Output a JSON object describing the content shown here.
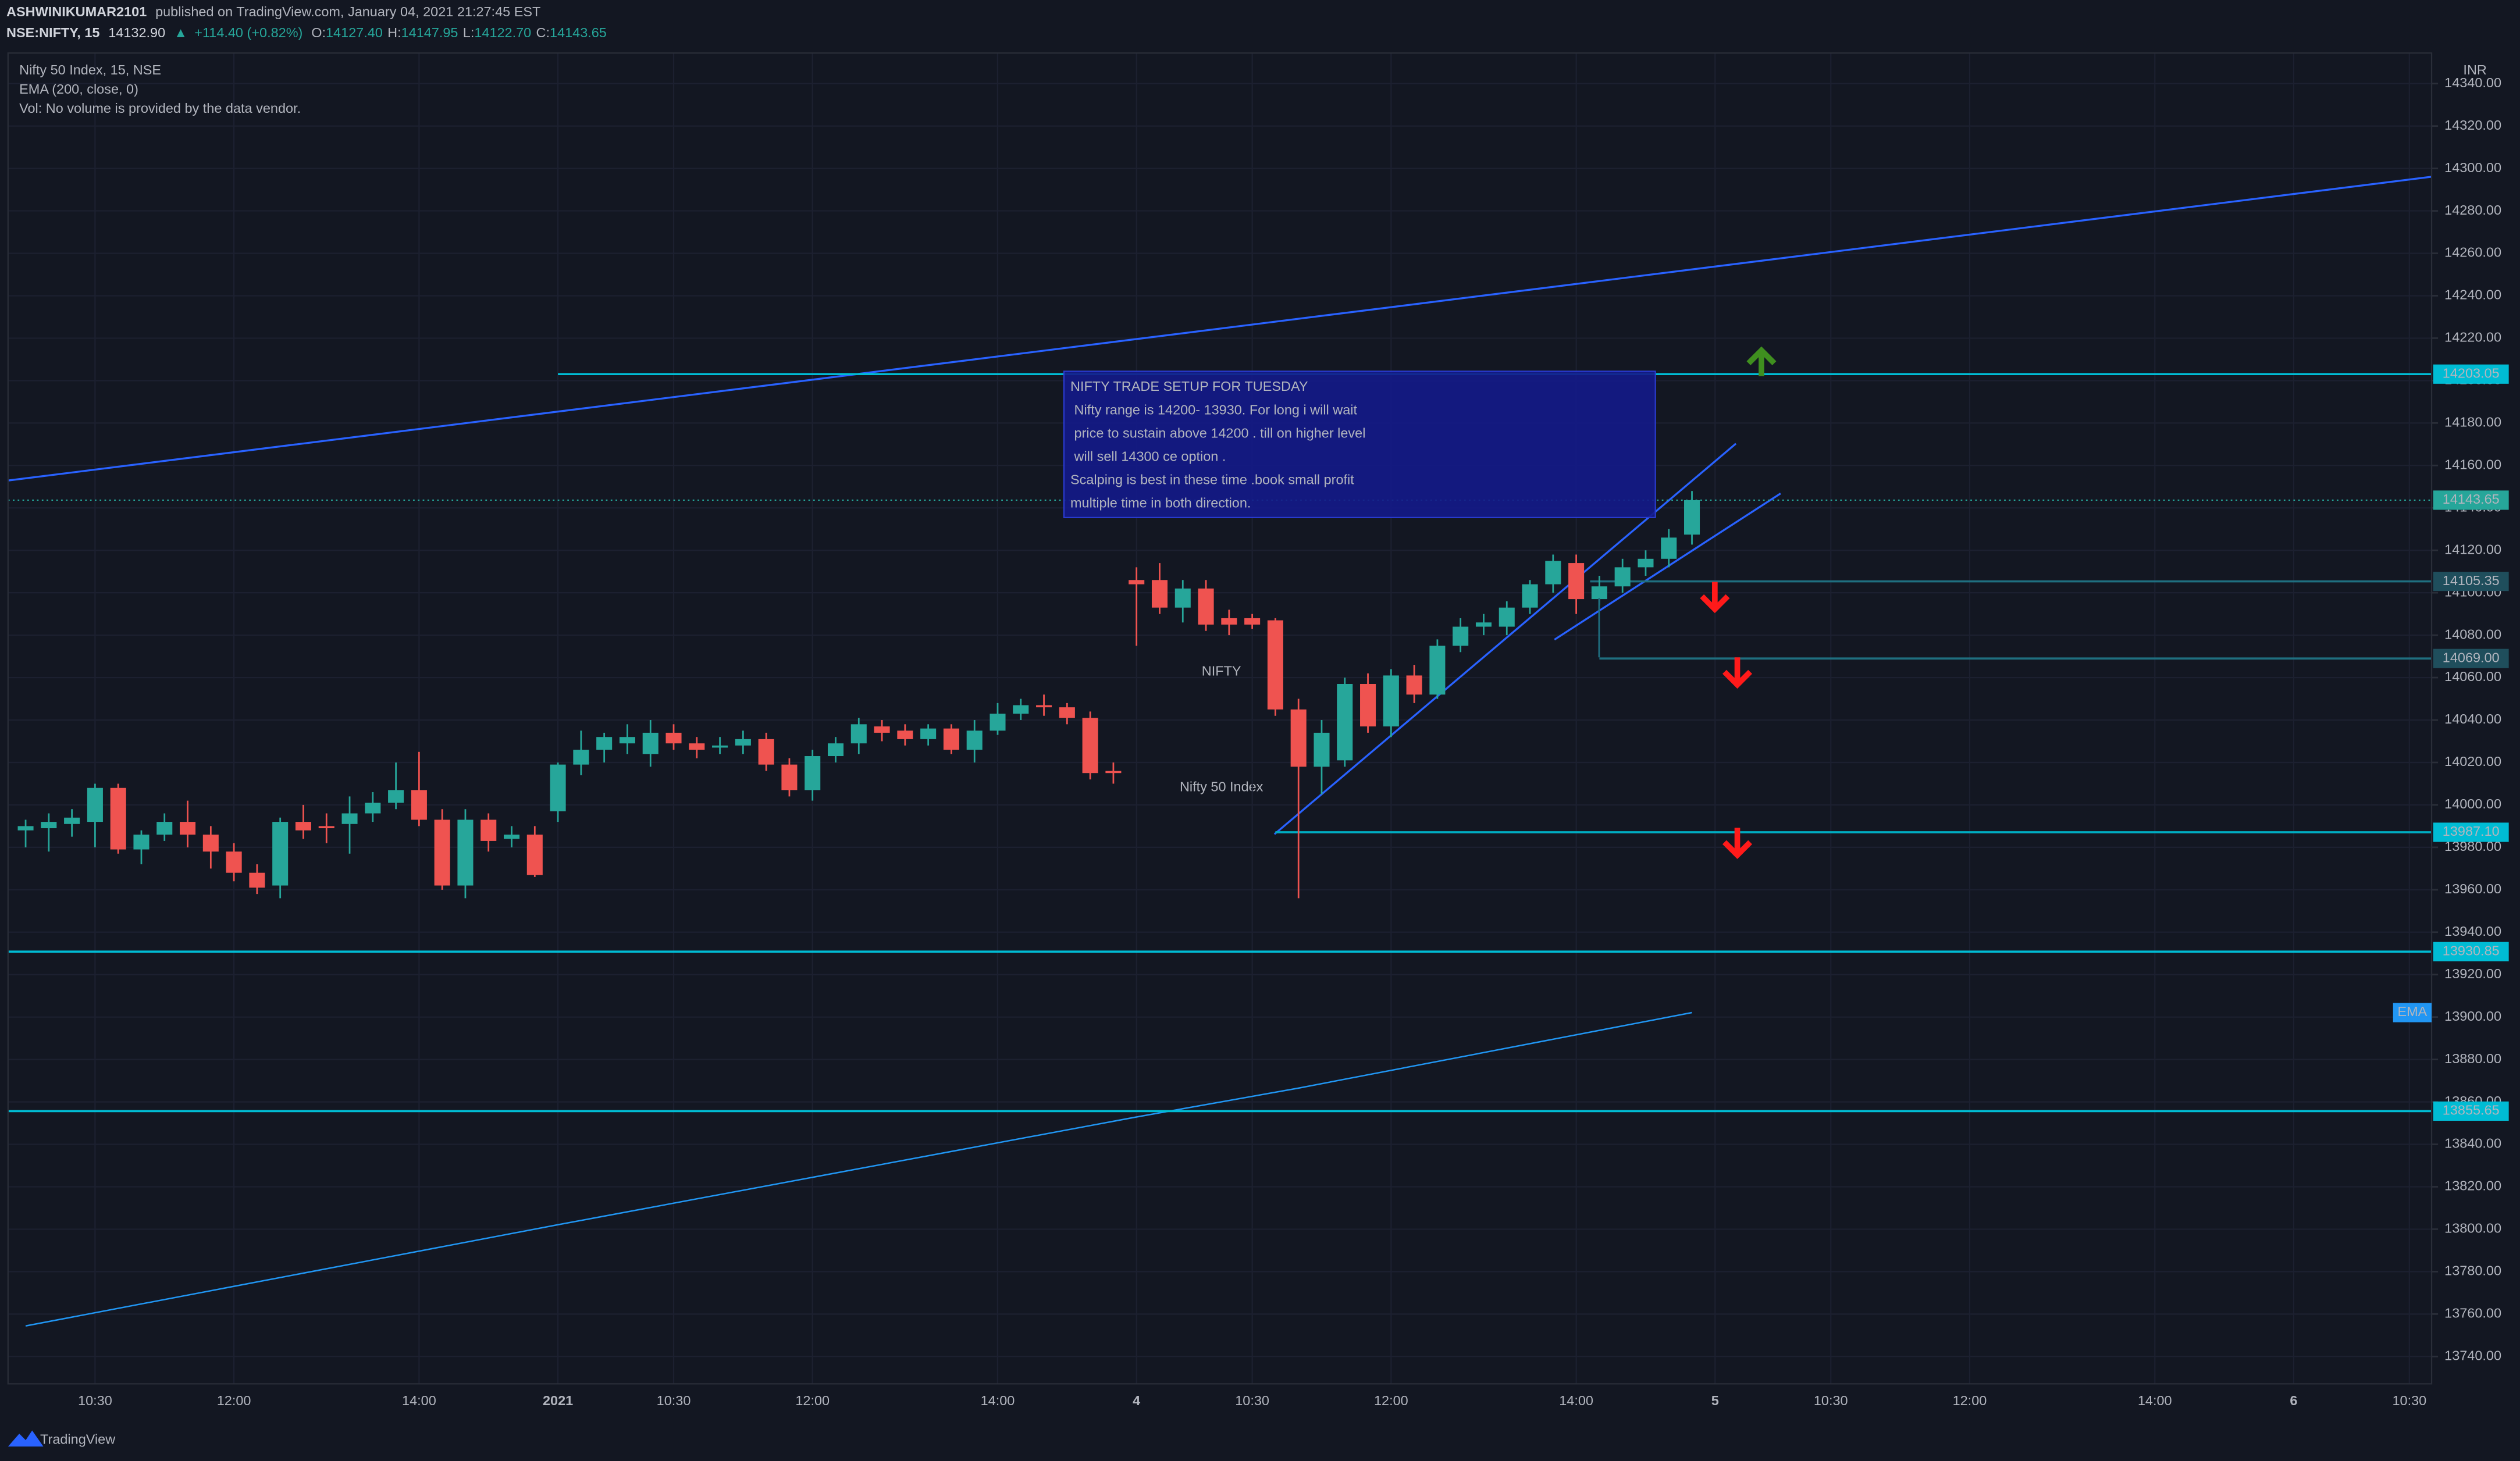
{
  "header": {
    "author": "ASHWINIKUMAR2101",
    "published": "published on TradingView.com, January 04, 2021 21:27:45 EST",
    "symbol": "NSE:NIFTY, 15",
    "last": "14132.90",
    "change": "+114.40 (+0.82%)",
    "ohlc": [
      {
        "label": "O:",
        "value": "14127.40"
      },
      {
        "label": "H:",
        "value": "14147.95"
      },
      {
        "label": "L:",
        "value": "14122.70"
      },
      {
        "label": "C:",
        "value": "14143.65"
      }
    ]
  },
  "brand": "TradingView",
  "chart_data": {
    "type": "candlestick",
    "title": "Nifty 50 Index, 15, NSE",
    "indicator": "EMA (200, close, 0)",
    "volume_note": "Vol: No volume is provided by the data vendor.",
    "watermark": [
      "NIFTY",
      "Nifty 50 Index"
    ],
    "currency": "INR",
    "up_color": "#26a69a",
    "down_color": "#ef5350",
    "grid": true,
    "candles": {
      "open": [
        13988,
        13989,
        13991,
        13992,
        14008,
        13979,
        13986,
        13992,
        13986,
        13978,
        13968,
        13962,
        13992,
        13990,
        13991,
        13996,
        14001,
        14007,
        13993,
        13962,
        13993,
        13984,
        13986,
        13997,
        14019,
        14026,
        14029,
        14024,
        14034,
        14029,
        14027,
        14028,
        14031,
        14019,
        14007,
        14023,
        14029,
        14037,
        14035,
        14031,
        14036,
        14026,
        14035,
        14043,
        14047,
        14046,
        14041,
        14016,
        14106,
        14106,
        14093,
        14102,
        14088,
        14088,
        14087,
        14045,
        14018,
        14021,
        14057,
        14037,
        14061,
        14052,
        14075,
        14084,
        14084,
        14093,
        14104,
        14114,
        14097,
        14103,
        14112,
        14116,
        14127.4
      ],
      "high": [
        13993,
        13996,
        13998,
        14010,
        14010,
        13988,
        13996,
        14002,
        13990,
        13982,
        13972,
        13994,
        14000,
        13996,
        14004,
        14006,
        14020,
        14025,
        13998,
        13998,
        13996,
        13990,
        13990,
        14020,
        14035,
        14034,
        14038,
        14040,
        14038,
        14032,
        14032,
        14035,
        14034,
        14022,
        14026,
        14032,
        14041,
        14040,
        14038,
        14038,
        14038,
        14040,
        14048,
        14050,
        14052,
        14048,
        14044,
        14020,
        14112,
        14114,
        14106,
        14106,
        14092,
        14090,
        14088,
        14050,
        14040,
        14060,
        14062,
        14064,
        14066,
        14078,
        14088,
        14090,
        14096,
        14106,
        14118,
        14118,
        14108,
        14116,
        14120,
        14130,
        14147.95
      ],
      "low": [
        13980,
        13978,
        13985,
        13980,
        13977,
        13972,
        13983,
        13980,
        13970,
        13964,
        13958,
        13956,
        13984,
        13982,
        13977,
        13992,
        13998,
        13990,
        13960,
        13956,
        13978,
        13980,
        13966,
        13992,
        14014,
        14020,
        14024,
        14018,
        14026,
        14022,
        14024,
        14024,
        14016,
        14004,
        14002,
        14020,
        14024,
        14030,
        14028,
        14028,
        14024,
        14020,
        14033,
        14040,
        14042,
        14038,
        14012,
        14010,
        14075,
        14090,
        14086,
        14082,
        14080,
        14083,
        14042,
        13956,
        14005,
        14018,
        14034,
        14032,
        14048,
        14050,
        14072,
        14080,
        14080,
        14090,
        14100,
        14090,
        14094,
        14100,
        14108,
        14112,
        14122.7
      ],
      "close": [
        13990,
        13992,
        13994,
        14008,
        13979,
        13986,
        13992,
        13986,
        13978,
        13968,
        13961,
        13992,
        13988,
        13989,
        13996,
        14001,
        14007,
        13993,
        13962,
        13993,
        13983,
        13986,
        13967,
        14019,
        14026,
        14032,
        14032,
        14034,
        14029,
        14026,
        14028,
        14031,
        14019,
        14007,
        14023,
        14029,
        14038,
        14034,
        14031,
        14036,
        14026,
        14035,
        14043,
        14047,
        14046,
        14041,
        14015,
        14015,
        14104,
        14093,
        14102,
        14085,
        14085,
        14085,
        14045,
        14018,
        14034,
        14057,
        14037,
        14061,
        14052,
        14075,
        14084,
        14086,
        14093,
        14104,
        14115,
        14097,
        14103,
        14112,
        14116,
        14126,
        14143.65
      ]
    },
    "last_price": 14143.65,
    "last_color": "#26a69a",
    "ema": {
      "name": "EMA",
      "color": "#2196f3",
      "x": [
        0,
        23,
        48,
        55,
        72
      ],
      "values": [
        13754.4,
        13802.1,
        13852.9,
        13866.5,
        13902.1
      ]
    },
    "levels": [
      {
        "price": 14203.05,
        "from": 23,
        "color": "#00bcd4",
        "bg": "#00bcd4",
        "text": "#131722"
      },
      {
        "price": 14105.35,
        "from": 67.6,
        "color": "#1f6f80",
        "bg": "#1f4e5c",
        "text": "#d1d4dc"
      },
      {
        "price": {
          "value": 14069,
          "label": "14069.00"
        },
        "from": 68,
        "color": "#1f6f80",
        "bg": "#1f4e5c",
        "text": "#d1d4dc"
      },
      {
        "price": {
          "value": 13987.1,
          "label": "13987.10"
        },
        "from": 54,
        "color": "#00acc1",
        "bg": "#00bcd4",
        "text": "#131722"
      },
      {
        "price": 13930.85,
        "from": -0.76,
        "color": "#00bcd4",
        "bg": "#00bcd4",
        "text": "#131722"
      },
      {
        "price": 13855.65,
        "from": -0.76,
        "color": "#00bcd4",
        "bg": "#00bcd4",
        "text": "#131722"
      }
    ],
    "trendlines": [
      {
        "color": "#2962ff",
        "x": [
          -0.76,
          103.96
        ],
        "y": [
          14152.9,
          14296.1
        ]
      },
      {
        "color": "#2962ff",
        "x": [
          53.96,
          73.9
        ],
        "y": [
          13986.2,
          14170.3
        ]
      },
      {
        "color": "#2962ff",
        "x": [
          66.06,
          75.83
        ],
        "y": [
          14077.9,
          14146.8
        ]
      }
    ],
    "annotation": [
      "NIFTY TRADE SETUP FOR TUESDAY",
      " Nifty range is 14200- 13930. For long i will wait",
      " price to sustain above 14200 . till on higher level",
      " will sell 14300 ce option .",
      "Scalping is best in these time .book small profit",
      "multiple time in both direction."
    ],
    "xlim": [
      -0.76,
      103.96
    ],
    "ylim": [
      13727.1,
      14354.4
    ],
    "xticks": [
      {
        "value": 3,
        "label": "10:30"
      },
      {
        "value": 9,
        "label": "12:00"
      },
      {
        "value": 17,
        "label": "14:00"
      },
      {
        "value": 23,
        "label": "2021"
      },
      {
        "value": 28,
        "label": "10:30"
      },
      {
        "value": 34,
        "label": "12:00"
      },
      {
        "value": 42,
        "label": "14:00"
      },
      {
        "value": 48,
        "label": "4"
      },
      {
        "value": 53,
        "label": "10:30"
      },
      {
        "value": 59,
        "label": "12:00"
      },
      {
        "value": 67,
        "label": "14:00"
      },
      {
        "value": 73,
        "label": "5"
      },
      {
        "value": 78,
        "label": "10:30"
      },
      {
        "value": 84,
        "label": "12:00"
      },
      {
        "value": 92,
        "label": "14:00"
      },
      {
        "value": 98,
        "label": "6"
      },
      {
        "value": 103,
        "label": "10:30"
      }
    ],
    "yticks": [
      {
        "value": 13740,
        "label": "13740.00"
      },
      {
        "value": 13760,
        "label": "13760.00"
      },
      {
        "value": 13780,
        "label": "13780.00"
      },
      {
        "value": 13800,
        "label": "13800.00"
      },
      {
        "value": 13820,
        "label": "13820.00"
      },
      {
        "value": 13840,
        "label": "13840.00"
      },
      {
        "value": 13860,
        "label": "13860.00"
      },
      {
        "value": 13880,
        "label": "13880.00"
      },
      {
        "value": 13900,
        "label": "13900.00"
      },
      {
        "value": 13920,
        "label": "13920.00"
      },
      {
        "value": 13940,
        "label": "13940.00"
      },
      {
        "value": 13960,
        "label": "13960.00"
      },
      {
        "value": 13980,
        "label": "13980.00"
      },
      {
        "value": 14000,
        "label": "14000.00"
      },
      {
        "value": 14020,
        "label": "14020.00"
      },
      {
        "value": 14040,
        "label": "14040.00"
      },
      {
        "value": 14060,
        "label": "14060.00"
      },
      {
        "value": 14080,
        "label": "14080.00"
      },
      {
        "value": 14100,
        "label": "14100.00"
      },
      {
        "value": 14120,
        "label": "14120.00"
      },
      {
        "value": 14140,
        "label": "14140.00"
      },
      {
        "value": 14160,
        "label": "14160.00"
      },
      {
        "value": 14180,
        "label": "14180.00"
      },
      {
        "value": 14200,
        "label": "14200.00"
      },
      {
        "value": 14220,
        "label": "14220.00"
      },
      {
        "value": 14240,
        "label": "14240.00"
      },
      {
        "value": 14260,
        "label": "14260.00"
      },
      {
        "value": 14280,
        "label": "14280.00"
      },
      {
        "value": 14300,
        "label": "14300.00"
      },
      {
        "value": 14320,
        "label": "14320.00"
      },
      {
        "value": 14340,
        "label": "14340.00"
      }
    ]
  }
}
